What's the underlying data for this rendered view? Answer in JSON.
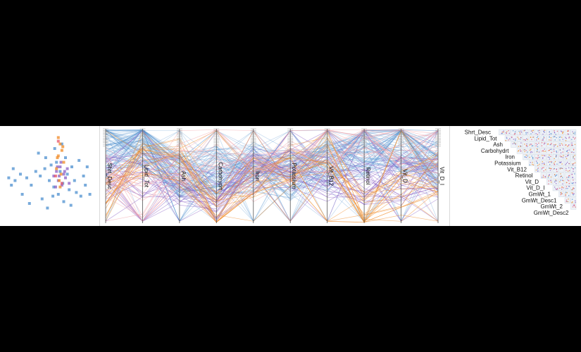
{
  "chart_data": [
    {
      "type": "scatter",
      "series": [
        {
          "name": "",
          "color": "#4c8fcf",
          "points": [
            [
              0.12,
              0.55
            ],
            [
              0.18,
              0.48
            ],
            [
              0.25,
              0.52
            ],
            [
              0.3,
              0.6
            ],
            [
              0.35,
              0.45
            ],
            [
              0.4,
              0.5
            ],
            [
              0.45,
              0.42
            ],
            [
              0.5,
              0.55
            ],
            [
              0.52,
              0.38
            ],
            [
              0.55,
              0.62
            ],
            [
              0.58,
              0.35
            ],
            [
              0.6,
              0.7
            ],
            [
              0.62,
              0.45
            ],
            [
              0.65,
              0.58
            ],
            [
              0.68,
              0.3
            ],
            [
              0.7,
              0.48
            ],
            [
              0.72,
              0.65
            ],
            [
              0.75,
              0.4
            ],
            [
              0.78,
              0.55
            ],
            [
              0.8,
              0.68
            ],
            [
              0.83,
              0.33
            ],
            [
              0.85,
              0.72
            ],
            [
              0.88,
              0.5
            ],
            [
              0.9,
              0.6
            ],
            [
              0.2,
              0.7
            ],
            [
              0.28,
              0.8
            ],
            [
              0.42,
              0.75
            ],
            [
              0.48,
              0.85
            ],
            [
              0.56,
              0.2
            ],
            [
              0.64,
              0.15
            ],
            [
              0.1,
              0.42
            ],
            [
              0.08,
              0.6
            ],
            [
              0.05,
              0.52
            ],
            [
              0.95,
              0.7
            ],
            [
              0.92,
              0.4
            ],
            [
              0.38,
              0.25
            ],
            [
              0.46,
              0.3
            ],
            [
              0.54,
              0.72
            ],
            [
              0.66,
              0.78
            ],
            [
              0.74,
              0.82
            ]
          ]
        },
        {
          "name": "",
          "color": "#8a5fc4",
          "points": [
            [
              0.55,
              0.5
            ],
            [
              0.58,
              0.45
            ],
            [
              0.6,
              0.55
            ],
            [
              0.62,
              0.4
            ],
            [
              0.64,
              0.6
            ],
            [
              0.66,
              0.48
            ],
            [
              0.68,
              0.52
            ],
            [
              0.7,
              0.42
            ],
            [
              0.72,
              0.58
            ],
            [
              0.57,
              0.62
            ],
            [
              0.63,
              0.35
            ],
            [
              0.61,
              0.5
            ],
            [
              0.67,
              0.45
            ],
            [
              0.59,
              0.4
            ]
          ]
        },
        {
          "name": "",
          "color": "#f08a24",
          "points": [
            [
              0.6,
              0.08
            ],
            [
              0.62,
              0.15
            ],
            [
              0.64,
              0.22
            ],
            [
              0.6,
              0.28
            ],
            [
              0.66,
              0.35
            ],
            [
              0.58,
              0.42
            ],
            [
              0.63,
              0.48
            ],
            [
              0.61,
              0.55
            ],
            [
              0.65,
              0.18
            ],
            [
              0.59,
              0.3
            ],
            [
              0.62,
              0.62
            ]
          ]
        },
        {
          "name": "",
          "color": "#e8566a",
          "points": [
            [
              0.6,
              0.12
            ],
            [
              0.57,
              0.5
            ],
            [
              0.64,
              0.58
            ]
          ]
        }
      ]
    },
    {
      "type": "parallel-coordinates",
      "axes": [
        "Shrt_Desc",
        "Lipid_Tot",
        "Ash",
        "Carbohydrt",
        "Iron",
        "Potassium",
        "Vit_B12",
        "Retinol",
        "Vit_D",
        "Vit_D_I"
      ],
      "series": [
        {
          "name": "",
          "color": "#4c8fcf",
          "count": 90
        },
        {
          "name": "",
          "color": "#8a5fc4",
          "count": 30
        },
        {
          "name": "",
          "color": "#f08a24",
          "count": 22
        },
        {
          "name": "",
          "color": "#f2a0a8",
          "count": 18
        }
      ]
    },
    {
      "type": "scatter-matrix",
      "variables": [
        "Shrt_Desc",
        "Lipid_Tot",
        "Ash",
        "Carbohydrt",
        "Iron",
        "Potassium",
        "Vit_B12",
        "Retinol",
        "Vit_D",
        "Vit_D_I",
        "GmWt_1",
        "GmWt_Desc1",
        "GmWt_2",
        "GmWt_Desc2"
      ]
    }
  ]
}
